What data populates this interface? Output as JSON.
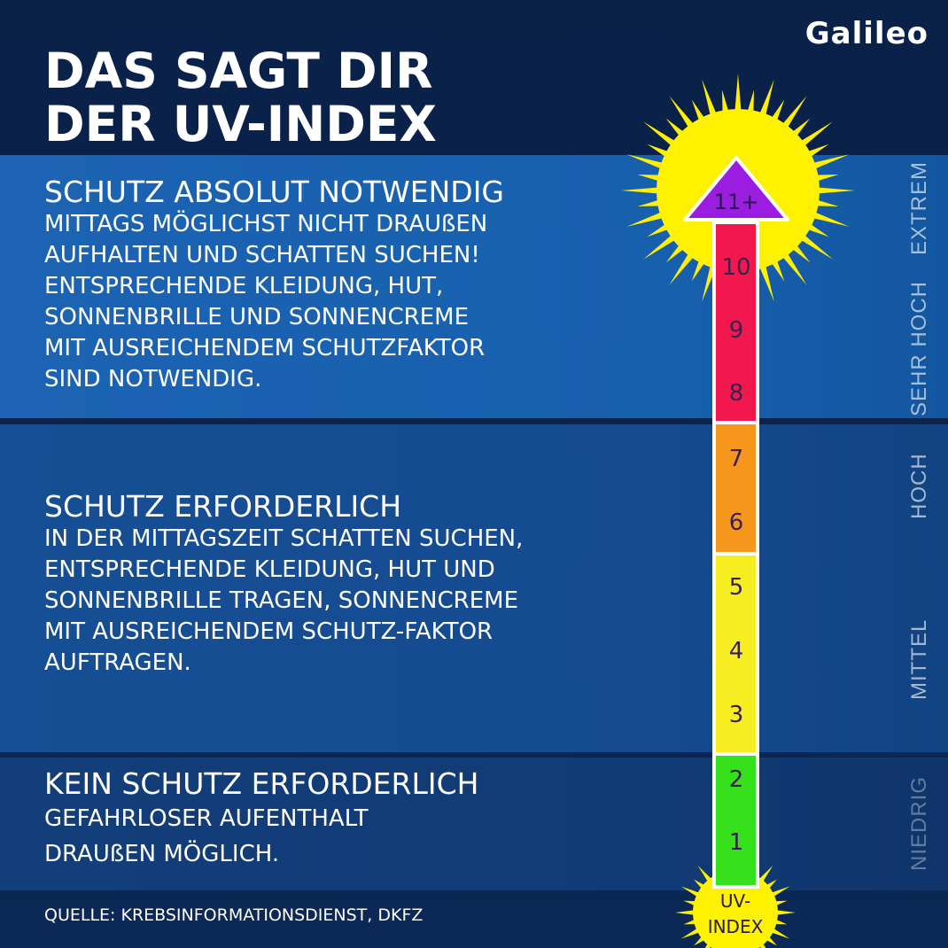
{
  "brand": {
    "logo_text": "Galileo"
  },
  "title": {
    "line1": "DAS SAGT DIR",
    "line2": "DER UV-INDEX"
  },
  "sections": [
    {
      "heading": "SCHUTZ ABSOLUT NOTWENDIG",
      "lines": [
        "MITTAGS MÖGLICHST NICHT DRAUßEN",
        "AUFHALTEN UND SCHATTEN SUCHEN!",
        "ENTSPRECHENDE KLEIDUNG, HUT,",
        "SONNENBRILLE UND SONNENCREME",
        "MIT AUSREICHENDEM SCHUTZFAKTOR",
        "SIND NOTWENDIG."
      ]
    },
    {
      "heading": "SCHUTZ ERFORDERLICH",
      "lines": [
        "IN DER MITTAGSZEIT SCHATTEN SUCHEN,",
        "ENTSPRECHENDE KLEIDUNG, HUT UND",
        "SONNENBRILLE TRAGEN, SONNENCREME",
        "MIT AUSREICHENDEM SCHUTZ-FAKTOR",
        "AUFTRAGEN."
      ]
    },
    {
      "heading": "KEIN SCHUTZ ERFORDERLICH",
      "lines": [
        "GEFAHRLOSER AUFENTHALT",
        "DRAUßEN MÖGLICH."
      ]
    }
  ],
  "categories": {
    "extrem": "EXTREM",
    "sehr_hoch": "SEHR HOCH",
    "hoch": "HOCH",
    "mittel": "MITTEL",
    "niedrig": "NIEDRIG"
  },
  "scale": {
    "top_label": "11+",
    "levels": [
      "1",
      "2",
      "3",
      "4",
      "5",
      "6",
      "7",
      "8",
      "9",
      "10"
    ],
    "base_label_line1": "UV-",
    "base_label_line2": "INDEX",
    "colors": {
      "green": "#36e11c",
      "yellow": "#f7ee21",
      "orange": "#f7961c",
      "red": "#f2184e",
      "purple": "#9b1ee0",
      "sun": "#fff200",
      "sun_rays": "#ffef00"
    }
  },
  "source": "QUELLE: KREBSINFORMATIONSDIENST, DKFZ"
}
